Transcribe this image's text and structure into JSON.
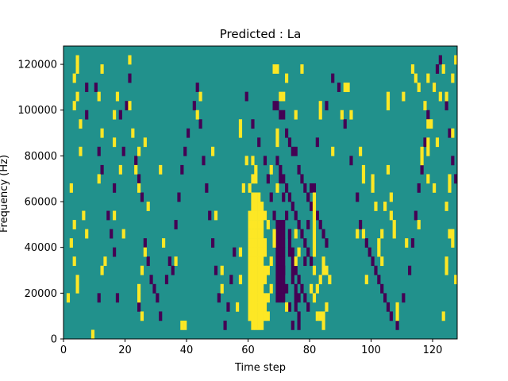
{
  "chart_data": {
    "type": "heatmap",
    "title": "Predicted : La",
    "xlabel": "Time step",
    "ylabel": "Frequency (Hz)",
    "xlim": [
      0,
      128
    ],
    "ylim": [
      0,
      128000
    ],
    "x_ticks": [
      0,
      20,
      40,
      60,
      80,
      100,
      120
    ],
    "y_ticks": [
      0,
      20000,
      40000,
      60000,
      80000,
      100000,
      120000
    ],
    "colors": {
      "background": "#21918c",
      "high": "#fde725",
      "low": "#440154"
    },
    "n_time_steps": 128,
    "n_freq_bins": 32,
    "freq_bin_width": 4000,
    "legend": "none",
    "grid": false,
    "cells_high": [
      [
        4,
        30
      ],
      [
        4,
        29
      ],
      [
        3,
        28
      ],
      [
        4,
        26
      ],
      [
        3,
        25
      ],
      [
        5,
        23
      ],
      [
        2,
        16
      ],
      [
        3,
        12
      ],
      [
        2,
        10
      ],
      [
        3,
        8
      ],
      [
        4,
        6
      ],
      [
        4,
        5
      ],
      [
        1,
        4
      ],
      [
        9,
        0
      ],
      [
        5,
        20
      ],
      [
        6,
        13
      ],
      [
        7,
        11
      ],
      [
        12,
        29
      ],
      [
        11,
        26
      ],
      [
        12,
        22
      ],
      [
        11,
        17
      ],
      [
        13,
        8
      ],
      [
        12,
        7
      ],
      [
        17,
        26
      ],
      [
        16,
        24
      ],
      [
        16,
        21
      ],
      [
        18,
        18
      ],
      [
        16,
        13
      ],
      [
        19,
        11
      ],
      [
        21,
        30
      ],
      [
        21,
        25
      ],
      [
        22,
        22
      ],
      [
        23,
        18
      ],
      [
        24,
        20
      ],
      [
        24,
        16
      ],
      [
        24,
        5
      ],
      [
        24,
        4
      ],
      [
        25,
        7
      ],
      [
        25,
        2
      ],
      [
        26,
        9
      ],
      [
        26,
        21
      ],
      [
        27,
        14
      ],
      [
        31,
        18
      ],
      [
        32,
        10
      ],
      [
        36,
        8
      ],
      [
        38,
        1
      ],
      [
        39,
        1
      ],
      [
        43,
        24
      ],
      [
        44,
        26
      ],
      [
        48,
        20
      ],
      [
        49,
        13
      ],
      [
        51,
        5
      ],
      [
        51,
        7
      ],
      [
        56,
        3
      ],
      [
        57,
        6
      ],
      [
        57,
        9
      ],
      [
        60,
        2
      ],
      [
        59,
        19
      ],
      [
        58,
        16
      ],
      [
        57,
        22
      ],
      [
        57,
        23
      ],
      [
        62,
        15
      ],
      [
        62,
        14
      ],
      [
        62,
        13
      ],
      [
        62,
        12
      ],
      [
        62,
        11
      ],
      [
        62,
        10
      ],
      [
        62,
        9
      ],
      [
        62,
        8
      ],
      [
        62,
        7
      ],
      [
        62,
        6
      ],
      [
        62,
        5
      ],
      [
        62,
        4
      ],
      [
        62,
        3
      ],
      [
        62,
        2
      ],
      [
        62,
        1
      ],
      [
        61,
        15
      ],
      [
        61,
        14
      ],
      [
        61,
        13
      ],
      [
        61,
        12
      ],
      [
        61,
        11
      ],
      [
        61,
        10
      ],
      [
        61,
        9
      ],
      [
        61,
        8
      ],
      [
        61,
        7
      ],
      [
        61,
        6
      ],
      [
        61,
        5
      ],
      [
        61,
        4
      ],
      [
        61,
        3
      ],
      [
        61,
        2
      ],
      [
        61,
        1
      ],
      [
        63,
        15
      ],
      [
        63,
        14
      ],
      [
        63,
        13
      ],
      [
        63,
        12
      ],
      [
        63,
        11
      ],
      [
        63,
        10
      ],
      [
        63,
        9
      ],
      [
        63,
        8
      ],
      [
        63,
        7
      ],
      [
        63,
        6
      ],
      [
        63,
        5
      ],
      [
        63,
        4
      ],
      [
        63,
        3
      ],
      [
        63,
        2
      ],
      [
        63,
        1
      ],
      [
        64,
        14
      ],
      [
        64,
        13
      ],
      [
        64,
        12
      ],
      [
        64,
        11
      ],
      [
        64,
        10
      ],
      [
        64,
        9
      ],
      [
        64,
        8
      ],
      [
        64,
        7
      ],
      [
        64,
        6
      ],
      [
        64,
        5
      ],
      [
        64,
        4
      ],
      [
        64,
        3
      ],
      [
        64,
        2
      ],
      [
        64,
        1
      ],
      [
        60,
        13
      ],
      [
        60,
        12
      ],
      [
        60,
        11
      ],
      [
        60,
        10
      ],
      [
        60,
        9
      ],
      [
        60,
        8
      ],
      [
        60,
        7
      ],
      [
        60,
        6
      ],
      [
        60,
        5
      ],
      [
        60,
        4
      ],
      [
        60,
        3
      ],
      [
        60,
        2
      ],
      [
        65,
        13
      ],
      [
        65,
        10
      ],
      [
        65,
        9
      ],
      [
        65,
        7
      ],
      [
        65,
        6
      ],
      [
        65,
        4
      ],
      [
        65,
        3
      ],
      [
        65,
        2
      ],
      [
        66,
        12
      ],
      [
        66,
        7
      ],
      [
        66,
        4
      ],
      [
        66,
        2
      ],
      [
        62,
        18
      ],
      [
        61,
        19
      ],
      [
        62,
        17
      ],
      [
        61,
        17
      ],
      [
        60,
        16
      ],
      [
        67,
        8
      ],
      [
        67,
        5
      ],
      [
        68,
        11
      ],
      [
        68,
        10
      ],
      [
        69,
        21
      ],
      [
        69,
        22
      ],
      [
        69,
        16
      ],
      [
        67,
        18
      ],
      [
        72,
        3
      ],
      [
        75,
        11
      ],
      [
        75,
        8
      ],
      [
        76,
        9
      ],
      [
        81,
        15
      ],
      [
        81,
        14
      ],
      [
        81,
        13
      ],
      [
        81,
        12
      ],
      [
        81,
        11
      ],
      [
        81,
        10
      ],
      [
        81,
        9
      ],
      [
        81,
        7
      ],
      [
        81,
        4
      ],
      [
        80,
        5
      ],
      [
        82,
        5
      ],
      [
        83,
        6
      ],
      [
        84,
        8
      ],
      [
        84,
        7
      ],
      [
        85,
        7
      ],
      [
        85,
        3
      ],
      [
        86,
        6
      ],
      [
        84,
        2
      ],
      [
        84,
        1
      ],
      [
        82,
        2
      ],
      [
        83,
        2
      ],
      [
        87,
        20
      ],
      [
        92,
        27
      ],
      [
        93,
        24
      ],
      [
        97,
        11
      ],
      [
        98,
        6
      ],
      [
        100,
        17
      ],
      [
        100,
        16
      ],
      [
        103,
        8
      ],
      [
        105,
        26
      ],
      [
        105,
        25
      ],
      [
        105,
        18
      ],
      [
        104,
        14
      ],
      [
        106,
        13
      ],
      [
        108,
        3
      ],
      [
        108,
        2
      ],
      [
        111,
        10
      ],
      [
        115,
        12
      ],
      [
        117,
        25
      ],
      [
        118,
        23
      ],
      [
        118,
        21
      ],
      [
        120,
        16
      ],
      [
        121,
        21
      ],
      [
        122,
        26
      ],
      [
        124,
        8
      ],
      [
        124,
        7
      ],
      [
        125,
        16
      ],
      [
        125,
        17
      ],
      [
        126,
        11
      ],
      [
        125,
        11
      ],
      [
        126,
        10
      ],
      [
        127,
        6
      ],
      [
        68,
        29
      ],
      [
        69,
        29
      ],
      [
        70,
        26
      ],
      [
        71,
        26
      ],
      [
        72,
        28
      ],
      [
        75,
        24
      ],
      [
        77,
        29
      ],
      [
        83,
        24
      ],
      [
        83,
        25
      ],
      [
        90,
        24
      ],
      [
        91,
        27
      ],
      [
        95,
        11
      ],
      [
        96,
        20
      ],
      [
        97,
        17
      ],
      [
        97,
        18
      ],
      [
        101,
        14
      ],
      [
        102,
        9
      ],
      [
        102,
        10
      ],
      [
        103,
        11
      ],
      [
        106,
        15
      ],
      [
        107,
        11
      ],
      [
        107,
        12
      ],
      [
        110,
        26
      ],
      [
        113,
        29
      ],
      [
        114,
        28
      ],
      [
        115,
        27
      ],
      [
        118,
        28
      ],
      [
        120,
        27
      ],
      [
        123,
        29
      ],
      [
        124,
        26
      ],
      [
        119,
        23
      ],
      [
        123,
        2
      ],
      [
        126,
        28
      ],
      [
        127,
        30
      ],
      [
        126,
        22
      ],
      [
        118,
        17
      ],
      [
        116,
        19
      ],
      [
        116,
        20
      ],
      [
        118,
        20
      ],
      [
        124,
        14
      ]
    ],
    "cells_low": [
      [
        7,
        24
      ],
      [
        7,
        27
      ],
      [
        10,
        27
      ],
      [
        11,
        20
      ],
      [
        11,
        4
      ],
      [
        12,
        18
      ],
      [
        14,
        13
      ],
      [
        16,
        16
      ],
      [
        15,
        11
      ],
      [
        16,
        9
      ],
      [
        17,
        4
      ],
      [
        18,
        24
      ],
      [
        19,
        20
      ],
      [
        20,
        25
      ],
      [
        21,
        28
      ],
      [
        23,
        19
      ],
      [
        24,
        17
      ],
      [
        24,
        3
      ],
      [
        25,
        15
      ],
      [
        26,
        10
      ],
      [
        27,
        8
      ],
      [
        28,
        6
      ],
      [
        29,
        5
      ],
      [
        30,
        4
      ],
      [
        31,
        2
      ],
      [
        33,
        6
      ],
      [
        34,
        8
      ],
      [
        35,
        7
      ],
      [
        36,
        12
      ],
      [
        37,
        15
      ],
      [
        38,
        18
      ],
      [
        39,
        20
      ],
      [
        40,
        22
      ],
      [
        42,
        25
      ],
      [
        43,
        27
      ],
      [
        44,
        23
      ],
      [
        45,
        19
      ],
      [
        46,
        16
      ],
      [
        47,
        13
      ],
      [
        48,
        10
      ],
      [
        49,
        7
      ],
      [
        50,
        4
      ],
      [
        52,
        1
      ],
      [
        53,
        3
      ],
      [
        54,
        6
      ],
      [
        55,
        9
      ],
      [
        59,
        26
      ],
      [
        61,
        23
      ],
      [
        63,
        21
      ],
      [
        65,
        19
      ],
      [
        66,
        17
      ],
      [
        67,
        15
      ],
      [
        68,
        13
      ],
      [
        69,
        11
      ],
      [
        70,
        9
      ],
      [
        71,
        7
      ],
      [
        72,
        5
      ],
      [
        73,
        3
      ],
      [
        74,
        1
      ],
      [
        76,
        4
      ],
      [
        78,
        8
      ],
      [
        79,
        12
      ],
      [
        80,
        16
      ],
      [
        82,
        21
      ],
      [
        85,
        25
      ],
      [
        87,
        28
      ],
      [
        89,
        27
      ],
      [
        91,
        23
      ],
      [
        93,
        19
      ],
      [
        95,
        15
      ],
      [
        96,
        12
      ],
      [
        98,
        10
      ],
      [
        99,
        9
      ],
      [
        100,
        8
      ],
      [
        101,
        7
      ],
      [
        102,
        6
      ],
      [
        103,
        5
      ],
      [
        104,
        4
      ],
      [
        105,
        3
      ],
      [
        106,
        2
      ],
      [
        108,
        1
      ],
      [
        110,
        4
      ],
      [
        112,
        7
      ],
      [
        113,
        10
      ],
      [
        114,
        13
      ],
      [
        115,
        16
      ],
      [
        116,
        18
      ],
      [
        117,
        21
      ],
      [
        118,
        24
      ],
      [
        120,
        27
      ],
      [
        121,
        29
      ],
      [
        122,
        30
      ],
      [
        124,
        25
      ],
      [
        125,
        22
      ],
      [
        126,
        19
      ],
      [
        127,
        17
      ],
      [
        68,
        25
      ],
      [
        69,
        25
      ],
      [
        70,
        24
      ],
      [
        71,
        24
      ],
      [
        72,
        22
      ],
      [
        73,
        21
      ],
      [
        74,
        20
      ],
      [
        75,
        20
      ],
      [
        76,
        18
      ],
      [
        77,
        17
      ],
      [
        78,
        16
      ],
      [
        79,
        15
      ],
      [
        80,
        14
      ],
      [
        81,
        16
      ],
      [
        82,
        13
      ],
      [
        83,
        12
      ],
      [
        84,
        11
      ],
      [
        85,
        10
      ],
      [
        69,
        19
      ],
      [
        70,
        18
      ],
      [
        71,
        17
      ],
      [
        72,
        16
      ],
      [
        73,
        15
      ],
      [
        74,
        14
      ],
      [
        75,
        13
      ],
      [
        76,
        12
      ],
      [
        77,
        11
      ],
      [
        78,
        10
      ],
      [
        79,
        9
      ],
      [
        80,
        8
      ],
      [
        70,
        17
      ],
      [
        71,
        15
      ],
      [
        72,
        13
      ],
      [
        73,
        11
      ],
      [
        74,
        9
      ],
      [
        75,
        7
      ],
      [
        76,
        6
      ],
      [
        77,
        5
      ],
      [
        78,
        4
      ],
      [
        79,
        3
      ],
      [
        69,
        12
      ],
      [
        70,
        12
      ],
      [
        71,
        12
      ],
      [
        69,
        11
      ],
      [
        70,
        11
      ],
      [
        71,
        11
      ],
      [
        69,
        10
      ],
      [
        70,
        10
      ],
      [
        71,
        10
      ],
      [
        69,
        9
      ],
      [
        70,
        9
      ],
      [
        71,
        9
      ],
      [
        69,
        8
      ],
      [
        70,
        8
      ],
      [
        71,
        8
      ],
      [
        69,
        7
      ],
      [
        70,
        7
      ],
      [
        71,
        7
      ],
      [
        69,
        6
      ],
      [
        70,
        6
      ],
      [
        71,
        6
      ],
      [
        69,
        5
      ],
      [
        70,
        5
      ],
      [
        71,
        5
      ],
      [
        69,
        4
      ],
      [
        70,
        4
      ],
      [
        71,
        4
      ],
      [
        73,
        11
      ],
      [
        73,
        10
      ],
      [
        73,
        9
      ],
      [
        74,
        8
      ],
      [
        74,
        7
      ],
      [
        74,
        6
      ],
      [
        75,
        5
      ],
      [
        75,
        4
      ],
      [
        75,
        3
      ],
      [
        76,
        2
      ],
      [
        76,
        1
      ]
    ]
  }
}
